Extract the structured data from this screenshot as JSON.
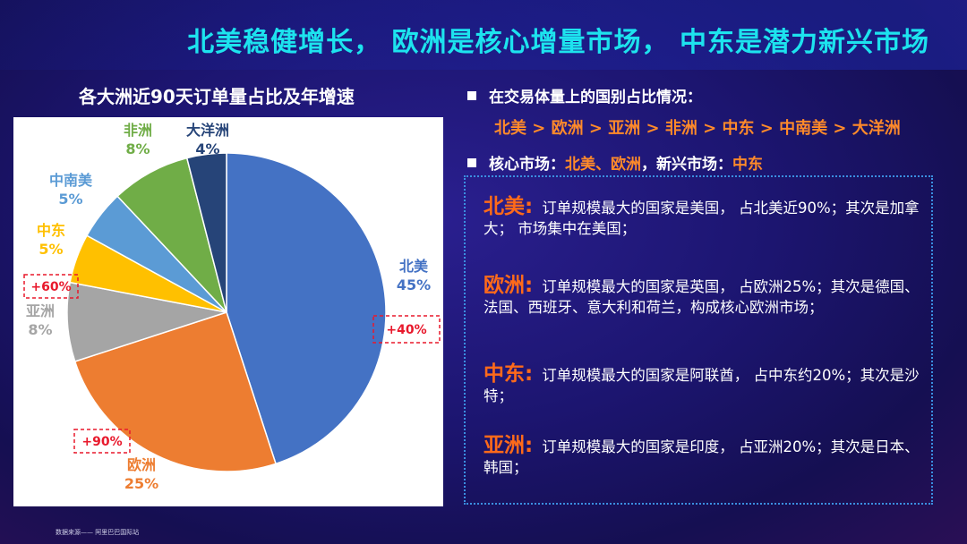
{
  "header": {
    "title": "北美稳健增长， 欧洲是核心增量市场， 中东是潜力新兴市场"
  },
  "chart_title": "各大洲近90天订单量占比及年增速",
  "chart_data": {
    "type": "pie",
    "title": "各大洲近90天订单量占比及年增速",
    "unit": "%",
    "slices": [
      {
        "label": "北美",
        "value": 45,
        "value_label": "45%",
        "growth": "+40%",
        "color": "#4472c4"
      },
      {
        "label": "欧洲",
        "value": 25,
        "value_label": "25%",
        "growth": "+90%",
        "color": "#ed7d31"
      },
      {
        "label": "亚洲",
        "value": 8,
        "value_label": "8%",
        "growth": "",
        "color": "#a5a5a5"
      },
      {
        "label": "中东",
        "value": 5,
        "value_label": "5%",
        "growth": "+60%",
        "color": "#ffc000"
      },
      {
        "label": "中南美",
        "value": 5,
        "value_label": "5%",
        "growth": "",
        "color": "#5b9bd5"
      },
      {
        "label": "非洲",
        "value": 8,
        "value_label": "8%",
        "growth": "",
        "color": "#70ad47"
      },
      {
        "label": "大洋洲",
        "value": 4,
        "value_label": "4%",
        "growth": "",
        "color": "#264478"
      }
    ],
    "start_angle_deg": 0,
    "direction": "clockwise",
    "growth_label_color": "#e8192c"
  },
  "bullets": {
    "b1_label": "在交易体量上的国别占比情况：",
    "ranking": "北美 > 欧洲 > 亚洲 > 非洲 > 中东 > 中南美 > 大洋洲",
    "b2_prefix": "核心市场：",
    "b2_core": "北美、欧洲",
    "b2_mid": "，新兴市场：",
    "b2_emerging": "中东"
  },
  "regions": [
    {
      "name": "北美:",
      "text": "订单规模最大的国家是美国， 占北美近90%；其次是加拿大； 市场集中在美国；"
    },
    {
      "name": "欧洲:",
      "text": "订单规模最大的国家是英国， 占欧洲25%；其次是德国、法国、西班牙、意大利和荷兰，构成核心欧洲市场；"
    },
    {
      "name": "中东:",
      "text": "订单规模最大的国家是阿联酋， 占中东约20%；其次是沙特；"
    },
    {
      "name": "亚洲:",
      "text": "订单规模最大的国家是印度， 占亚洲20%；其次是日本、韩国；"
    }
  ],
  "footer": "数据来源—— 阿里巴巴国际站"
}
